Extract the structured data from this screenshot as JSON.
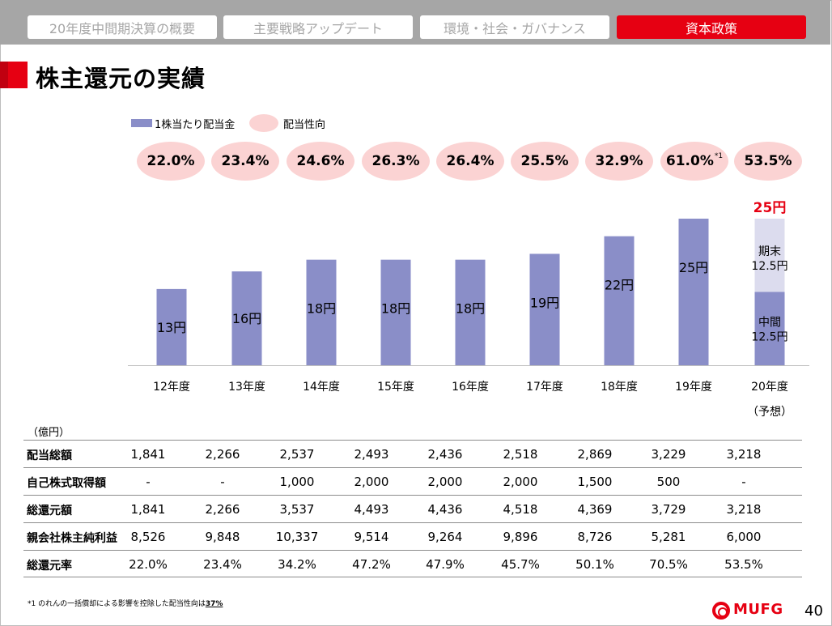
{
  "nav": {
    "tabs": [
      {
        "label": "20年度中間期決算の概要",
        "active": false
      },
      {
        "label": "主要戦略アップデート",
        "active": false
      },
      {
        "label": "環境・社会・ガバナンス",
        "active": false
      },
      {
        "label": "資本政策",
        "active": true
      }
    ]
  },
  "page_title": "株主還元の実績",
  "legend": {
    "bar_label": "1株当たり配当金",
    "payout_label": "配当性向"
  },
  "colors": {
    "accent": "#e60012",
    "bar": "#8a8ec8",
    "bar_forecast": "#dcdcee",
    "payout_fill": "#fbd3d3",
    "nav_bg": "#a6a6a6"
  },
  "payout_ratios": [
    {
      "value": "22.0%"
    },
    {
      "value": "23.4%"
    },
    {
      "value": "24.6%"
    },
    {
      "value": "26.3%"
    },
    {
      "value": "26.4%"
    },
    {
      "value": "25.5%"
    },
    {
      "value": "32.9%"
    },
    {
      "value": "61.0%",
      "note": "*1"
    },
    {
      "value": "53.5%"
    }
  ],
  "chart_data": {
    "type": "bar",
    "categories": [
      "12年度",
      "13年度",
      "14年度",
      "15年度",
      "16年度",
      "17年度",
      "18年度",
      "19年度",
      "20年度"
    ],
    "category_note": "（予想）",
    "values": [
      13,
      16,
      18,
      18,
      18,
      19,
      22,
      25,
      25
    ],
    "value_labels": [
      "13円",
      "16円",
      "18円",
      "18円",
      "18円",
      "19円",
      "22円",
      "25円",
      ""
    ],
    "forecast": {
      "total_label": "25円",
      "interim": 12.5,
      "final": 12.5,
      "interim_label": [
        "中間",
        "12.5円"
      ],
      "final_label": [
        "期末",
        "12.5円"
      ]
    },
    "ylim": [
      0,
      25
    ]
  },
  "table": {
    "unit": "（億円）",
    "rows": [
      {
        "label": "配当総額",
        "values": [
          "1,841",
          "2,266",
          "2,537",
          "2,493",
          "2,436",
          "2,518",
          "2,869",
          "3,229",
          "3,218"
        ]
      },
      {
        "label": "自己株式取得額",
        "values": [
          "-",
          "-",
          "1,000",
          "2,000",
          "2,000",
          "2,000",
          "1,500",
          "500",
          "-"
        ]
      },
      {
        "label": "総還元額",
        "values": [
          "1,841",
          "2,266",
          "3,537",
          "4,493",
          "4,436",
          "4,518",
          "4,369",
          "3,729",
          "3,218"
        ]
      },
      {
        "label": "親会社株主純利益",
        "values": [
          "8,526",
          "9,848",
          "10,337",
          "9,514",
          "9,264",
          "9,896",
          "8,726",
          "5,281",
          "6,000"
        ]
      },
      {
        "label": "総還元率",
        "values": [
          "22.0%",
          "23.4%",
          "34.2%",
          "47.2%",
          "47.9%",
          "45.7%",
          "50.1%",
          "70.5%",
          "53.5%"
        ]
      }
    ]
  },
  "footnote": {
    "text": "*1 のれんの一括償却による影響を控除した配当性向は",
    "highlight": "37%"
  },
  "logo": "MUFG",
  "page_number": "40"
}
